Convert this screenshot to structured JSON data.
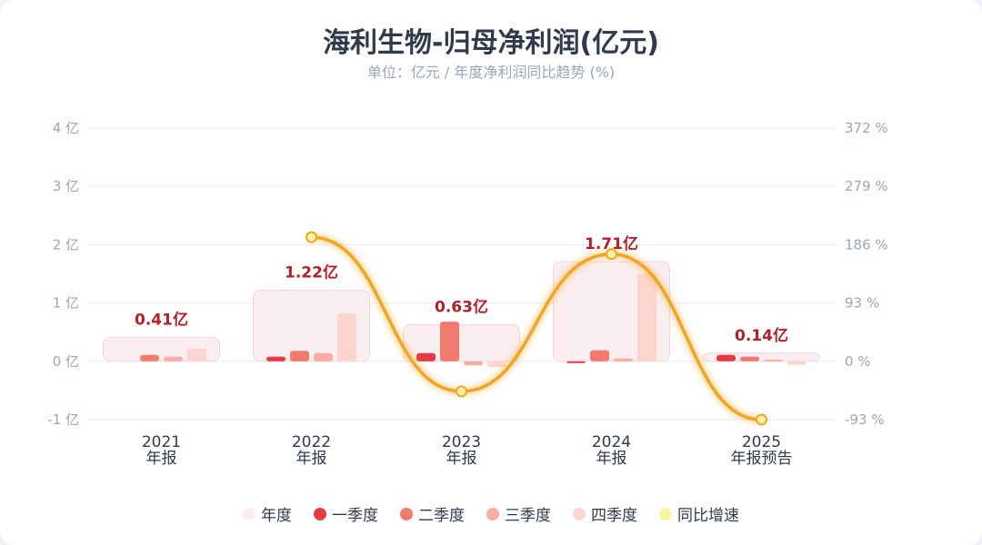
{
  "title": "海利生物-归母净利润(亿元)",
  "subtitle": "单位：亿元 / 年度净利润同比趋势 (%)",
  "chart_data": {
    "type": "bar",
    "categories": [
      {
        "year": "2021",
        "type": "年报"
      },
      {
        "year": "2022",
        "type": "年报"
      },
      {
        "year": "2023",
        "type": "年报"
      },
      {
        "year": "2024",
        "type": "年报"
      },
      {
        "year": "2025",
        "type": "年报预告"
      }
    ],
    "annual_labels": [
      "0.41亿",
      "1.22亿",
      "0.63亿",
      "1.71亿",
      "0.14亿"
    ],
    "annual": [
      0.41,
      1.22,
      0.63,
      1.71,
      0.14
    ],
    "quarters": [
      {
        "name": "一季度",
        "color": "#e63946",
        "values": [
          0.0,
          0.08,
          0.14,
          -0.02,
          0.11
        ]
      },
      {
        "name": "二季度",
        "color": "#f07b6c",
        "values": [
          0.11,
          0.18,
          0.68,
          0.19,
          0.08
        ]
      },
      {
        "name": "三季度",
        "color": "#f7ada3",
        "values": [
          0.08,
          0.14,
          -0.07,
          0.05,
          0.03
        ]
      },
      {
        "name": "四季度",
        "color": "#fdd5cf",
        "values": [
          0.22,
          0.82,
          -0.1,
          1.5,
          -0.06
        ]
      }
    ],
    "annual_series": {
      "name": "年度",
      "color": "#fbeef0"
    },
    "growth": {
      "name": "同比增速",
      "color": "#f0a623",
      "dot_color": "#fdf2a6",
      "values": [
        null,
        198,
        -48,
        171,
        -93
      ]
    },
    "y_left": {
      "ticks": [
        "4 亿",
        "3 亿",
        "2 亿",
        "1 亿",
        "0 亿",
        "-1 亿"
      ],
      "min": -1,
      "max": 4
    },
    "y_right": {
      "ticks": [
        "372 %",
        "279 %",
        "186 %",
        "93 %",
        "0 %",
        "-93 %"
      ],
      "min": -93,
      "max": 372
    },
    "grid": true,
    "legend": "bottom"
  },
  "legend": [
    {
      "label": "年度",
      "color": "#fbeef0"
    },
    {
      "label": "一季度",
      "color": "#e63946"
    },
    {
      "label": "二季度",
      "color": "#f07b6c"
    },
    {
      "label": "三季度",
      "color": "#f7ada3"
    },
    {
      "label": "四季度",
      "color": "#fdd5cf"
    },
    {
      "label": "同比增速",
      "color": "#fdf2a6"
    }
  ]
}
